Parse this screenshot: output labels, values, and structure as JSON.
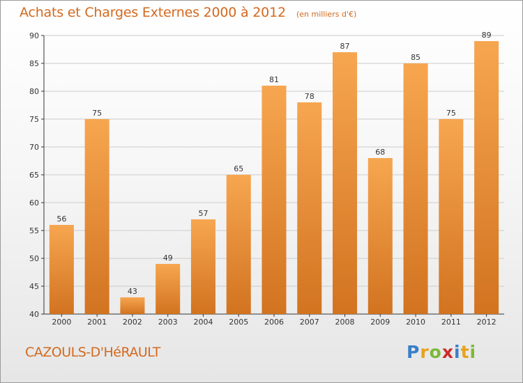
{
  "chart_data": {
    "type": "bar",
    "title": "Achats et Charges Externes 2000 à 2012",
    "subtitle": "(en milliers d'€)",
    "categories": [
      "2000",
      "2001",
      "2002",
      "2003",
      "2004",
      "2005",
      "2006",
      "2007",
      "2008",
      "2009",
      "2010",
      "2011",
      "2012"
    ],
    "values": [
      56,
      75,
      43,
      49,
      57,
      65,
      81,
      78,
      87,
      68,
      85,
      75,
      89
    ],
    "ylim": [
      40,
      90
    ],
    "yticks": [
      40,
      45,
      50,
      55,
      60,
      65,
      70,
      75,
      80,
      85,
      90
    ],
    "grid": "horizontal",
    "bar_color_light": "#f7a650",
    "bar_color_dark": "#d27320"
  },
  "commune": "CAZOULS-D'HéRAULT",
  "logo": {
    "letters": [
      "P",
      "r",
      "o",
      "x",
      "i",
      "t",
      "i"
    ],
    "colors": [
      "#3a7fc8",
      "#e8a21b",
      "#7cb937",
      "#cc2a2a",
      "#3a7fc8",
      "#e8a21b",
      "#7cb937"
    ]
  },
  "colors": {
    "title": "#d2691e",
    "grid": "#cccccc",
    "axis": "#333333"
  }
}
